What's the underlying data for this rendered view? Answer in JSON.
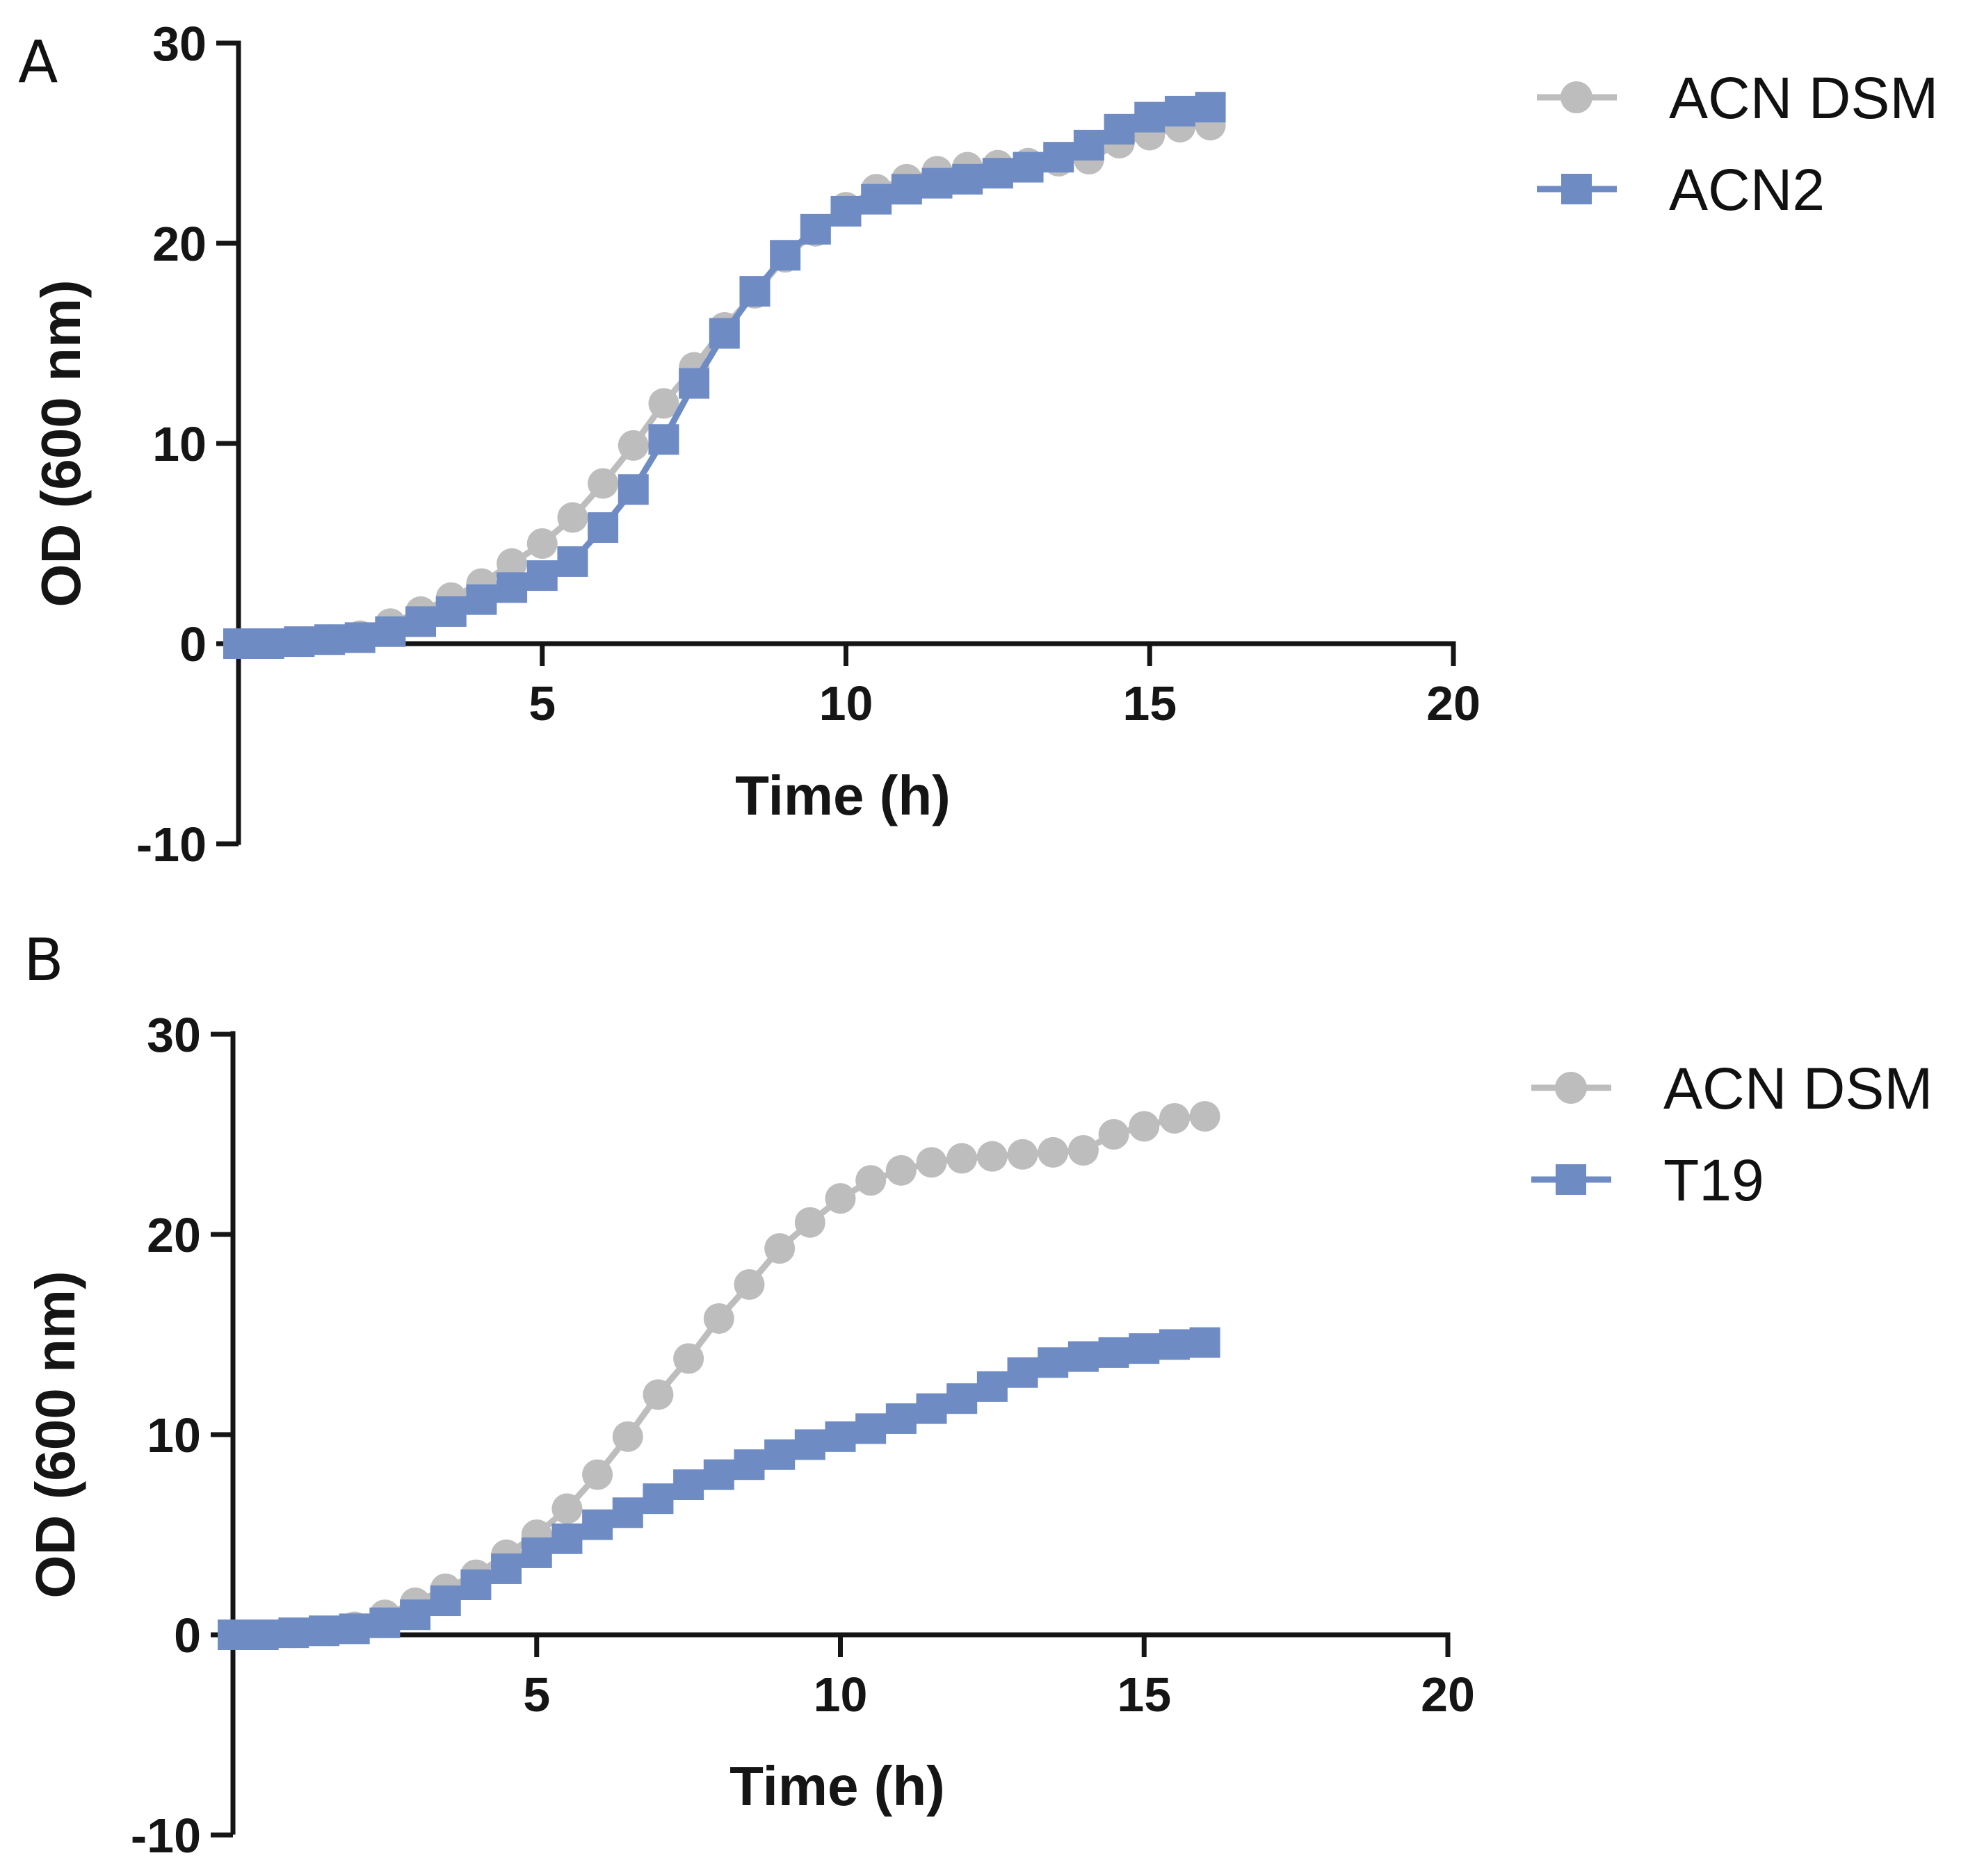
{
  "colors": {
    "ACN DSM": "#bdbdbd",
    "ACN2": "#6f8bc4",
    "T19": "#6f8bc4",
    "axis": "#151515"
  },
  "chart_data": [
    {
      "type": "line",
      "panel_label": "A",
      "xlabel": "Time (h)",
      "ylabel": "OD (600 nm)",
      "xlim": [
        0,
        20
      ],
      "ylim": [
        -10,
        30
      ],
      "xticks": [
        5,
        10,
        15,
        20
      ],
      "yticks": [
        -10,
        0,
        10,
        20,
        30
      ],
      "grid": false,
      "legend_position": "top-right",
      "x": [
        0,
        0.5,
        1,
        1.5,
        2,
        2.5,
        3,
        3.5,
        4,
        4.5,
        5,
        5.5,
        6,
        6.5,
        7,
        7.5,
        8,
        8.5,
        9,
        9.5,
        10,
        10.5,
        11,
        11.5,
        12,
        12.5,
        13,
        13.5,
        14,
        14.5,
        15,
        15.5,
        16
      ],
      "series": [
        {
          "name": "ACN DSM",
          "marker": "circle",
          "colorKey": "ACN DSM",
          "values": [
            0,
            0,
            0.1,
            0.2,
            0.4,
            1,
            1.6,
            2.3,
            3,
            4,
            5,
            6.3,
            8,
            9.9,
            12,
            13.8,
            15.8,
            17.5,
            19.3,
            20.6,
            21.8,
            22.7,
            23.2,
            23.6,
            23.8,
            23.9,
            24,
            24.1,
            24.2,
            25,
            25.4,
            25.8,
            25.9
          ]
        },
        {
          "name": "ACN2",
          "marker": "square",
          "colorKey": "ACN2",
          "values": [
            0,
            0,
            0.1,
            0.2,
            0.3,
            0.6,
            1.1,
            1.6,
            2.2,
            2.8,
            3.4,
            4.1,
            5.8,
            7.7,
            10.2,
            13,
            15.5,
            17.6,
            19.4,
            20.7,
            21.6,
            22.2,
            22.7,
            23,
            23.2,
            23.5,
            23.8,
            24.3,
            24.9,
            25.7,
            26.3,
            26.6,
            26.8
          ]
        }
      ]
    },
    {
      "type": "line",
      "panel_label": "B",
      "xlabel": "Time (h)",
      "ylabel": "OD (600 nm)",
      "xlim": [
        0,
        20
      ],
      "ylim": [
        -10,
        30
      ],
      "xticks": [
        5,
        10,
        15,
        20
      ],
      "yticks": [
        -10,
        0,
        10,
        20,
        30
      ],
      "grid": false,
      "legend_position": "top-right",
      "x": [
        0,
        0.5,
        1,
        1.5,
        2,
        2.5,
        3,
        3.5,
        4,
        4.5,
        5,
        5.5,
        6,
        6.5,
        7,
        7.5,
        8,
        8.5,
        9,
        9.5,
        10,
        10.5,
        11,
        11.5,
        12,
        12.5,
        13,
        13.5,
        14,
        14.5,
        15,
        15.5,
        16
      ],
      "series": [
        {
          "name": "ACN DSM",
          "marker": "circle",
          "colorKey": "ACN DSM",
          "values": [
            0,
            0,
            0.1,
            0.2,
            0.4,
            1,
            1.6,
            2.3,
            3,
            4,
            5,
            6.3,
            8,
            9.9,
            12,
            13.8,
            15.8,
            17.5,
            19.3,
            20.6,
            21.8,
            22.7,
            23.2,
            23.6,
            23.8,
            23.9,
            24,
            24.1,
            24.2,
            25,
            25.4,
            25.8,
            25.9
          ]
        },
        {
          "name": "T19",
          "marker": "square",
          "colorKey": "T19",
          "values": [
            0,
            0,
            0.1,
            0.2,
            0.3,
            0.6,
            1,
            1.7,
            2.5,
            3.3,
            4.1,
            4.8,
            5.5,
            6.1,
            6.8,
            7.5,
            8,
            8.5,
            9,
            9.5,
            9.9,
            10.3,
            10.8,
            11.3,
            11.8,
            12.4,
            13.1,
            13.6,
            13.9,
            14.1,
            14.3,
            14.5,
            14.6
          ]
        }
      ]
    }
  ]
}
